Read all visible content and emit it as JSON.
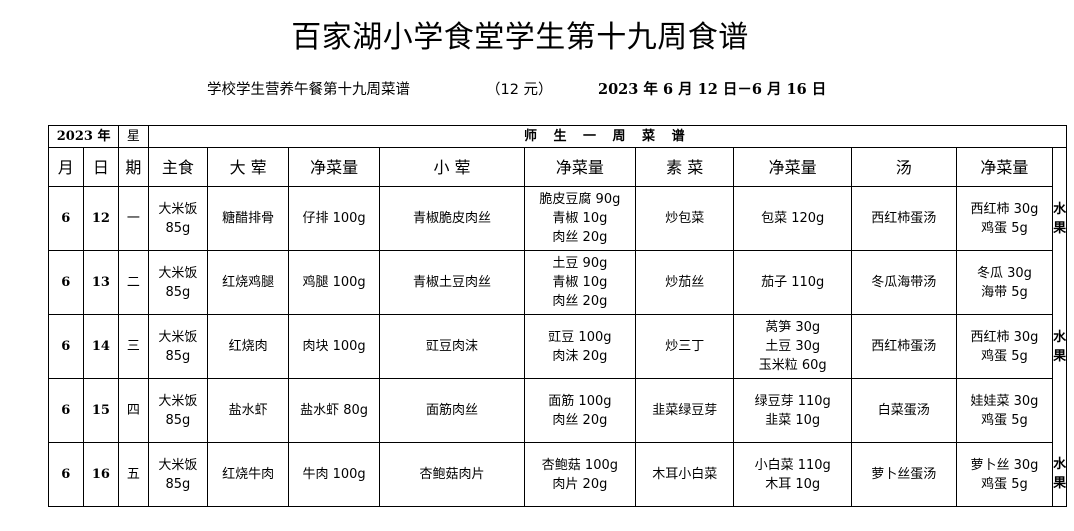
{
  "title": "百家湖小学食堂学生第十九周食谱",
  "subtitle": {
    "school": "学校学生营养午餐第十九周菜谱",
    "price": "（12 元）",
    "dates": "2023 年 6 月 12 日－6 月 16 日"
  },
  "header": {
    "year": "2023 年",
    "xing": "星",
    "qi": "期",
    "month": "月",
    "day": "日",
    "menu_title": "师 生 一 周 菜 谱",
    "staple": "主食",
    "main_dish": "大 荤",
    "weight1": "净菜量",
    "small_dish": "小 荤",
    "weight2": "净菜量",
    "veg": "素 菜",
    "weight3": "净菜量",
    "soup": "汤",
    "weight4": "净菜量"
  },
  "rows": [
    {
      "month": "6",
      "day": "12",
      "weekday": "一",
      "staple": [
        "大米饭",
        "85g"
      ],
      "main_dish": "糖醋排骨",
      "main_weight": [
        "仔排 100g"
      ],
      "small_dish": "青椒脆皮肉丝",
      "small_weight": [
        "脆皮豆腐 90g",
        "青椒 10g",
        "肉丝 20g"
      ],
      "veg": "炒包菜",
      "veg_weight": [
        "包菜 120g"
      ],
      "soup": "西红柿蛋汤",
      "soup_weight": [
        "西红柿 30g",
        "鸡蛋 5g"
      ],
      "fruit": "水果"
    },
    {
      "month": "6",
      "day": "13",
      "weekday": "二",
      "staple": [
        "大米饭",
        "85g"
      ],
      "main_dish": "红烧鸡腿",
      "main_weight": [
        "鸡腿 100g"
      ],
      "small_dish": "青椒土豆肉丝",
      "small_weight": [
        "土豆 90g",
        "青椒 10g",
        "肉丝 20g"
      ],
      "veg": "炒茄丝",
      "veg_weight": [
        "茄子 110g"
      ],
      "soup": "冬瓜海带汤",
      "soup_weight": [
        "冬瓜 30g",
        "海带 5g"
      ],
      "fruit": ""
    },
    {
      "month": "6",
      "day": "14",
      "weekday": "三",
      "staple": [
        "大米饭",
        "85g"
      ],
      "main_dish": "红烧肉",
      "main_weight": [
        "肉块 100g"
      ],
      "small_dish": "豇豆肉沫",
      "small_weight": [
        "豇豆 100g",
        "肉沫 20g"
      ],
      "veg": "炒三丁",
      "veg_weight": [
        "莴笋 30g",
        "土豆 30g",
        "玉米粒 60g"
      ],
      "soup": "西红柿蛋汤",
      "soup_weight": [
        "西红柿 30g",
        "鸡蛋 5g"
      ],
      "fruit": "水果"
    },
    {
      "month": "6",
      "day": "15",
      "weekday": "四",
      "staple": [
        "大米饭",
        "85g"
      ],
      "main_dish": "盐水虾",
      "main_weight": [
        "盐水虾 80g"
      ],
      "small_dish": "面筋肉丝",
      "small_weight": [
        "面筋 100g",
        "肉丝 20g"
      ],
      "veg": "韭菜绿豆芽",
      "veg_weight": [
        "绿豆芽 110g",
        "韭菜 10g"
      ],
      "soup": "白菜蛋汤",
      "soup_weight": [
        "娃娃菜 30g",
        "鸡蛋 5g"
      ],
      "fruit": ""
    },
    {
      "month": "6",
      "day": "16",
      "weekday": "五",
      "staple": [
        "大米饭",
        "85g"
      ],
      "main_dish": "红烧牛肉",
      "main_weight": [
        "牛肉 100g"
      ],
      "small_dish": "杏鲍菇肉片",
      "small_weight": [
        "杏鲍菇 100g",
        "肉片 20g"
      ],
      "veg": "木耳小白菜",
      "veg_weight": [
        "小白菜 110g",
        "木耳 10g"
      ],
      "soup": "萝卜丝蛋汤",
      "soup_weight": [
        "萝卜丝 30g",
        "鸡蛋 5g"
      ],
      "fruit": "水果"
    }
  ]
}
